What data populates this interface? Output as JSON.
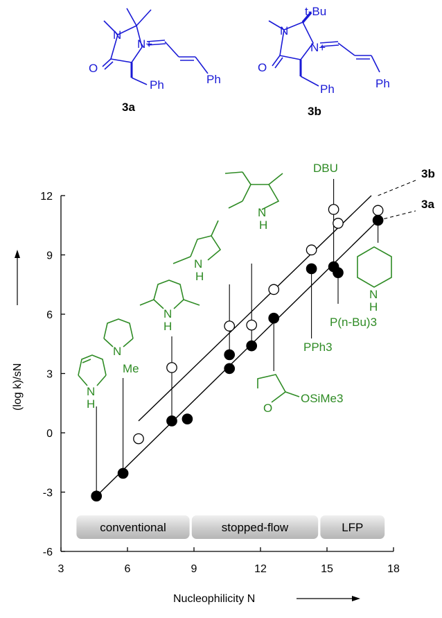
{
  "chart_data": {
    "type": "scatter",
    "xlabel": "Nucleophilicity N",
    "ylabel": "(log k)/sN",
    "xlim": [
      3,
      18
    ],
    "ylim": [
      -6,
      12
    ],
    "x_ticks": [
      "3",
      "6",
      "9",
      "12",
      "15",
      "18"
    ],
    "y_ticks": [
      "-6",
      "-3",
      "0",
      "3",
      "6",
      "9",
      "12"
    ],
    "grid": false,
    "series": [
      {
        "name": "3b",
        "marker": "open-circle",
        "points": [
          {
            "x": 6.5,
            "y": -0.3
          },
          {
            "x": 8.0,
            "y": 3.3
          },
          {
            "x": 10.6,
            "y": 5.4
          },
          {
            "x": 11.6,
            "y": 5.45
          },
          {
            "x": 12.6,
            "y": 7.25
          },
          {
            "x": 14.3,
            "y": 9.25
          },
          {
            "x": 15.3,
            "y": 11.3
          },
          {
            "x": 15.5,
            "y": 10.6
          },
          {
            "x": 17.3,
            "y": 11.25
          }
        ],
        "fit": {
          "x": [
            6.5,
            17.0
          ],
          "y": [
            0.6,
            12.0
          ]
        }
      },
      {
        "name": "3a",
        "marker": "filled-circle",
        "points": [
          {
            "x": 4.6,
            "y": -3.2
          },
          {
            "x": 5.8,
            "y": -2.05
          },
          {
            "x": 8.0,
            "y": 0.6
          },
          {
            "x": 8.7,
            "y": 0.7
          },
          {
            "x": 10.6,
            "y": 3.25
          },
          {
            "x": 10.6,
            "y": 3.95
          },
          {
            "x": 11.6,
            "y": 4.4
          },
          {
            "x": 12.6,
            "y": 5.8
          },
          {
            "x": 14.3,
            "y": 8.3
          },
          {
            "x": 15.3,
            "y": 8.4
          },
          {
            "x": 15.5,
            "y": 8.1
          },
          {
            "x": 17.3,
            "y": 10.75
          }
        ],
        "fit": {
          "x": [
            4.6,
            17.3
          ],
          "y": [
            -3.2,
            10.75
          ]
        }
      }
    ],
    "method_bands": [
      {
        "label": "conventional",
        "x_range": [
          3.7,
          8.8
        ]
      },
      {
        "label": "stopped-flow",
        "x_range": [
          8.9,
          14.6
        ]
      },
      {
        "label": "LFP",
        "x_range": [
          14.7,
          17.6
        ]
      }
    ],
    "series_labels": [
      {
        "label": "3b",
        "series": "3b"
      },
      {
        "label": "3a",
        "series": "3a"
      }
    ],
    "annotations": {
      "reagents": [
        {
          "label_lines": [
            "N",
            "H"
          ],
          "structure": "pyrrole",
          "x": 4.6
        },
        {
          "label_lines": [
            "N",
            "Me"
          ],
          "structure": "N-methylpyrrole",
          "x": 5.8
        },
        {
          "label_lines": [
            "N",
            "H"
          ],
          "structure": "2,5-dimethylpyrrole",
          "x": 8.0
        },
        {
          "label_lines": [
            "N",
            "H"
          ],
          "structure": "2,4-dimethylpyrrole",
          "x": 10.6
        },
        {
          "label_lines": [
            "N",
            "H"
          ],
          "structure": "3-ethyl-2,4-dimethylpyrrole",
          "x": 11.6
        },
        {
          "label_lines": [
            "O",
            "OSiMe3"
          ],
          "structure": "silyl ketene acetal",
          "x": 12.6
        },
        {
          "label_lines": [
            "PPh3"
          ],
          "structure": "triphenylphosphine",
          "x": 14.3
        },
        {
          "label_lines": [
            "DBU"
          ],
          "structure": "DBU",
          "x": 15.3
        },
        {
          "label_lines": [
            "P(n-Bu)3"
          ],
          "structure": "tributylphosphine",
          "x": 15.5
        },
        {
          "label_lines": [
            "N",
            "H"
          ],
          "structure": "piperidine",
          "x": 17.3
        }
      ]
    }
  },
  "header_structures": [
    {
      "compound_label": "3a",
      "atoms": [
        "N",
        "N+",
        "O",
        "Ph",
        "Ph"
      ]
    },
    {
      "compound_label": "3b",
      "atoms": [
        "t-Bu",
        "N",
        "N+",
        "O",
        "Ph",
        "Ph"
      ]
    }
  ],
  "colors": {
    "structure": "#1a1ad6",
    "reagent": "#2e8b24",
    "axis": "#000000",
    "band": "#c9c9c9"
  }
}
